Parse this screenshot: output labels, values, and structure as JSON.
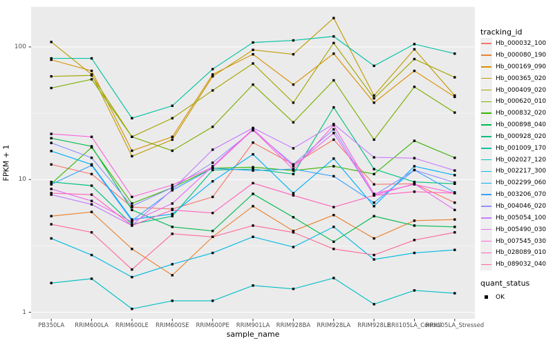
{
  "chart": {
    "y_axis_title": "FPKM + 1",
    "x_axis_title": "sample_name",
    "legend_title": "tracking_id",
    "quant_legend_title": "quant_status",
    "quant_ok_label": "OK"
  },
  "colors": {
    "panel_bg": "#ebebeb",
    "grid_major": "#ffffff",
    "grid_minor": "#ffffff",
    "axis_text": "#4d4d4d",
    "tick_mark": "#333333",
    "point": "#000000",
    "legend_key_bg": "#efefef"
  },
  "chart_data": {
    "type": "line",
    "title": "",
    "xlabel": "sample_name",
    "ylabel": "FPKM + 1",
    "yscale": "log10",
    "ylim": [
      0.9,
      200
    ],
    "y_ticks": [
      1,
      10,
      100
    ],
    "y_minor_gridlines": [
      3.162,
      31.62
    ],
    "grid": true,
    "legend_position": "right",
    "point_shape": "filled-black-square",
    "quant_status_all_points": "OK",
    "categories": [
      "PB350LA",
      "RRIM600LA",
      "RRIM600LE",
      "RRIM600SE",
      "RRIM600PE",
      "RRIM901LA",
      "RRIM928BA",
      "RRIM928LA",
      "RRIM928LE",
      "RRII105LA_Control",
      "RRII105LA_Stressed"
    ],
    "series": [
      {
        "name": "Hb_000032_100",
        "color": "#F8766D",
        "values": [
          13.0,
          11.0,
          6.2,
          6.0,
          7.4,
          19.0,
          13.0,
          20.0,
          9.2,
          9.3,
          6.7
        ]
      },
      {
        "name": "Hb_000080_190",
        "color": "#EA8331",
        "values": [
          5.3,
          5.7,
          3.0,
          1.9,
          3.7,
          6.3,
          4.1,
          5.4,
          3.6,
          4.9,
          5.0
        ]
      },
      {
        "name": "Hb_000169_090",
        "color": "#D89000",
        "values": [
          80,
          66,
          16.5,
          21,
          62,
          88,
          52,
          89,
          38,
          66,
          42
        ]
      },
      {
        "name": "Hb_000365_020",
        "color": "#C09B00",
        "values": [
          109,
          62,
          15,
          20,
          60,
          95,
          88,
          165,
          43,
          96,
          43
        ]
      },
      {
        "name": "Hb_000409_020",
        "color": "#A3A500",
        "values": [
          60,
          61,
          21,
          29,
          47,
          75,
          38,
          107,
          41,
          81,
          59
        ]
      },
      {
        "name": "Hb_000620_010",
        "color": "#7CAE00",
        "values": [
          49,
          57,
          21,
          16.5,
          25,
          52,
          27,
          56,
          20,
          50,
          32
        ]
      },
      {
        "name": "Hb_000832_020",
        "color": "#39B600",
        "values": [
          9.3,
          17.5,
          6.6,
          8.7,
          12.2,
          12.4,
          11.7,
          12.6,
          11.0,
          19.6,
          14.6
        ]
      },
      {
        "name": "Hb_000898_040",
        "color": "#00BB4E",
        "values": [
          20.5,
          17.8,
          5.9,
          4.4,
          4.1,
          7.8,
          5.2,
          3.4,
          5.3,
          4.5,
          4.4
        ]
      },
      {
        "name": "Hb_000928_020",
        "color": "#00BF7D",
        "values": [
          9.6,
          9.0,
          4.6,
          5.3,
          11.8,
          12.0,
          11.0,
          35,
          12.0,
          9.6,
          9.3
        ]
      },
      {
        "name": "Hb_001009_170",
        "color": "#00C1A3",
        "values": [
          82,
          82,
          29,
          36,
          68,
          108,
          112,
          120,
          72,
          105,
          89
        ]
      },
      {
        "name": "Hb_002027_120",
        "color": "#00BFC4",
        "values": [
          1.66,
          1.79,
          1.06,
          1.22,
          1.22,
          1.59,
          1.5,
          1.81,
          1.15,
          1.46,
          1.39
        ]
      },
      {
        "name": "Hb_002217_300",
        "color": "#00BAE0",
        "values": [
          3.6,
          2.7,
          1.84,
          2.3,
          2.8,
          3.7,
          3.1,
          4.4,
          2.5,
          2.8,
          2.95
        ]
      },
      {
        "name": "Hb_002299_060",
        "color": "#00B0F6",
        "values": [
          16.4,
          13.0,
          5.0,
          5.5,
          9.7,
          15.5,
          7.9,
          14.4,
          6.3,
          12.6,
          10.8
        ]
      },
      {
        "name": "Hb_003206_070",
        "color": "#35A2FF",
        "values": [
          9.2,
          12.8,
          4.9,
          8.3,
          12.2,
          11.7,
          12.0,
          10.6,
          6.7,
          11.8,
          8.0
        ]
      },
      {
        "name": "Hb_004046_020",
        "color": "#9590FF",
        "values": [
          18.9,
          14.6,
          6.3,
          8.7,
          13.4,
          23.5,
          13.0,
          23.9,
          7.6,
          11.8,
          9.5
        ]
      },
      {
        "name": "Hb_005054_100",
        "color": "#C77CFF",
        "values": [
          7.7,
          6.5,
          4.5,
          8.4,
          16.8,
          24.5,
          17.2,
          26.2,
          14.7,
          14.5,
          11.7
        ]
      },
      {
        "name": "Hb_005490_030",
        "color": "#E76BF3",
        "values": [
          8.5,
          6.9,
          4.8,
          6.6,
          12.6,
          24.0,
          12.6,
          22.4,
          7.6,
          9.3,
          5.9
        ]
      },
      {
        "name": "Hb_007545_030",
        "color": "#FA62DB",
        "values": [
          22.1,
          21.0,
          7.4,
          9.1,
          12.4,
          23.8,
          11.9,
          25.7,
          7.8,
          9.2,
          7.9
        ]
      },
      {
        "name": "Hb_028089_010",
        "color": "#FF62BC",
        "values": [
          7.9,
          7.7,
          4.5,
          5.9,
          5.6,
          9.4,
          7.6,
          6.2,
          7.6,
          8.1,
          7.9
        ]
      },
      {
        "name": "Hb_089032_040",
        "color": "#FF6A98",
        "values": [
          4.6,
          4.0,
          2.1,
          3.9,
          3.7,
          4.5,
          4.0,
          3.0,
          2.7,
          3.5,
          4.0
        ]
      }
    ]
  }
}
